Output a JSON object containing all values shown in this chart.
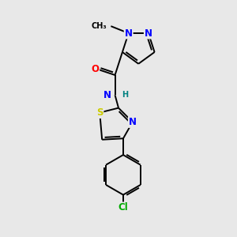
{
  "background_color": "#e8e8e8",
  "bond_color": "#000000",
  "atom_colors": {
    "N": "#0000ff",
    "O": "#ff0000",
    "S": "#cccc00",
    "Cl": "#00aa00",
    "C": "#000000",
    "H": "#008080"
  },
  "lw": 1.4,
  "fs": 8.5
}
